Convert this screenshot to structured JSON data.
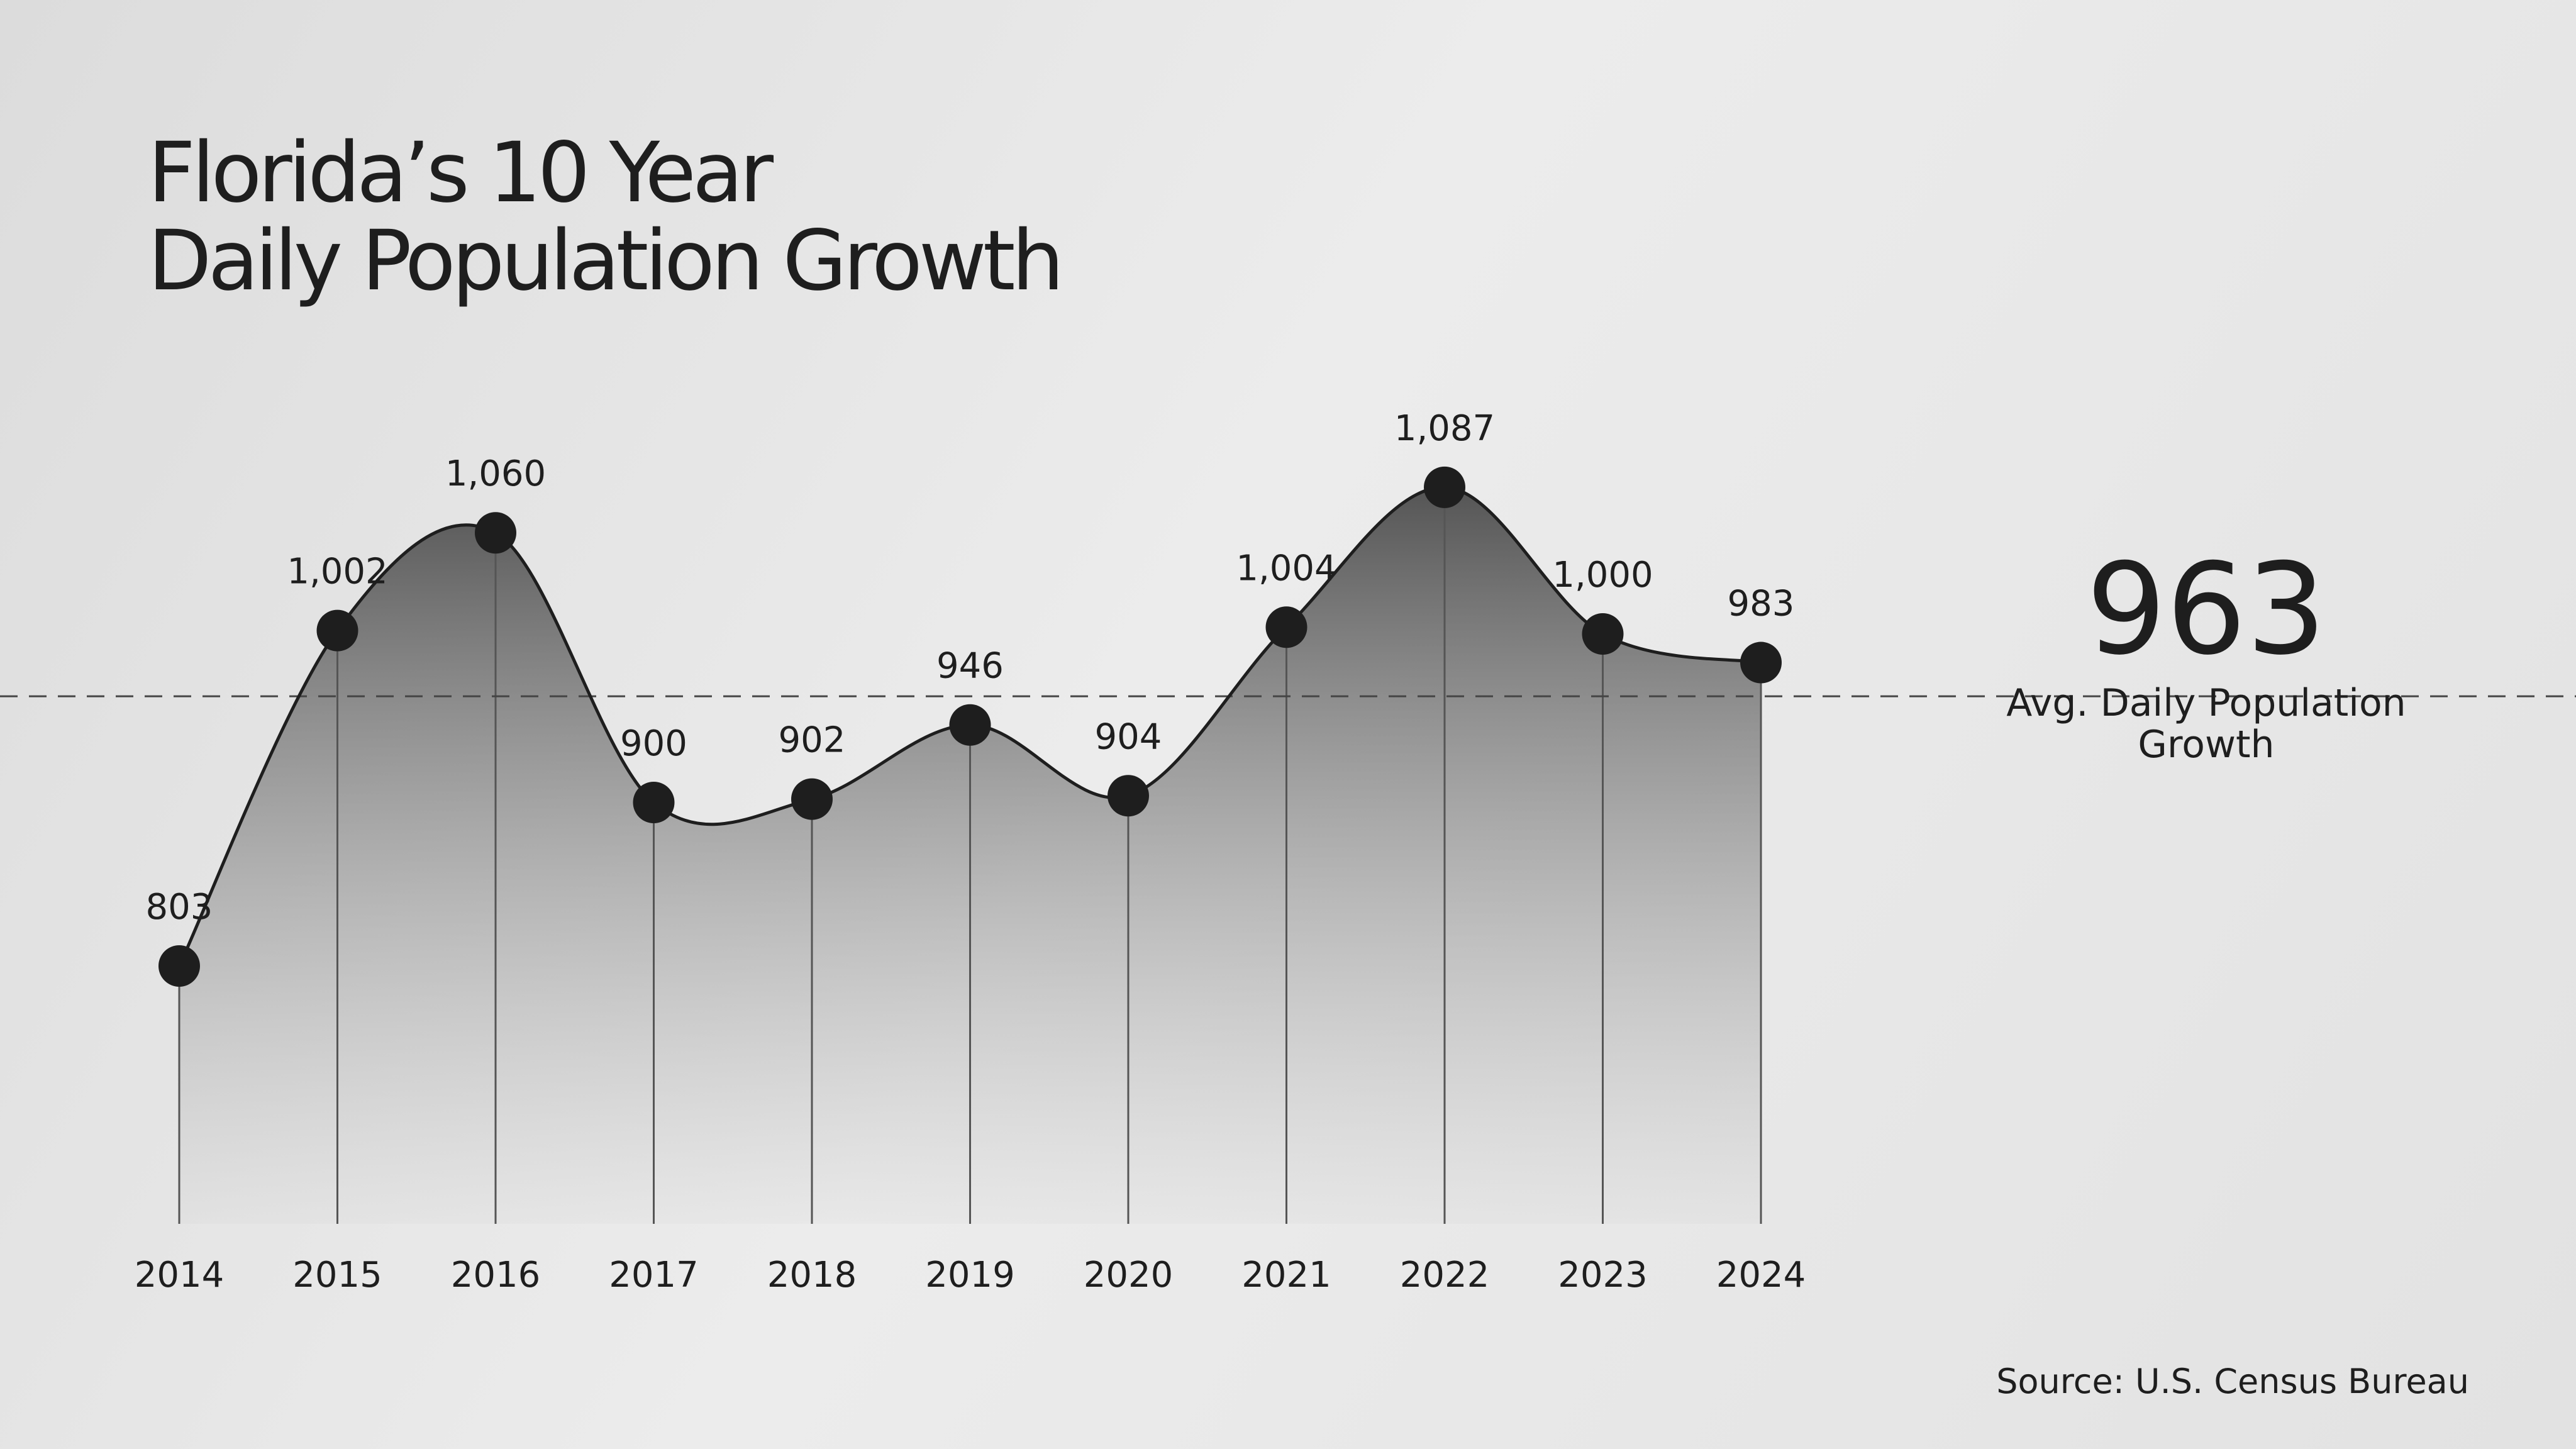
{
  "chart_data": {
    "type": "area",
    "title": [
      "Florida’s 10 Year",
      "Daily Population Growth"
    ],
    "categories": [
      "2014",
      "2015",
      "2016",
      "2017",
      "2018",
      "2019",
      "2020",
      "2021",
      "2022",
      "2023",
      "2024"
    ],
    "values": [
      803,
      1002,
      1060,
      900,
      902,
      946,
      904,
      1004,
      1087,
      1000,
      983
    ],
    "value_labels": [
      "803",
      "1,002",
      "1,060",
      "900",
      "902",
      "946",
      "904",
      "1,004",
      "1,087",
      "1,000",
      "983"
    ],
    "color": "#1e1e1e",
    "ylim": [
      650,
      1150
    ],
    "average": {
      "value": 963,
      "label": "Avg. Daily Population Growth"
    },
    "source": "Source: U.S. Census Bureau"
  }
}
